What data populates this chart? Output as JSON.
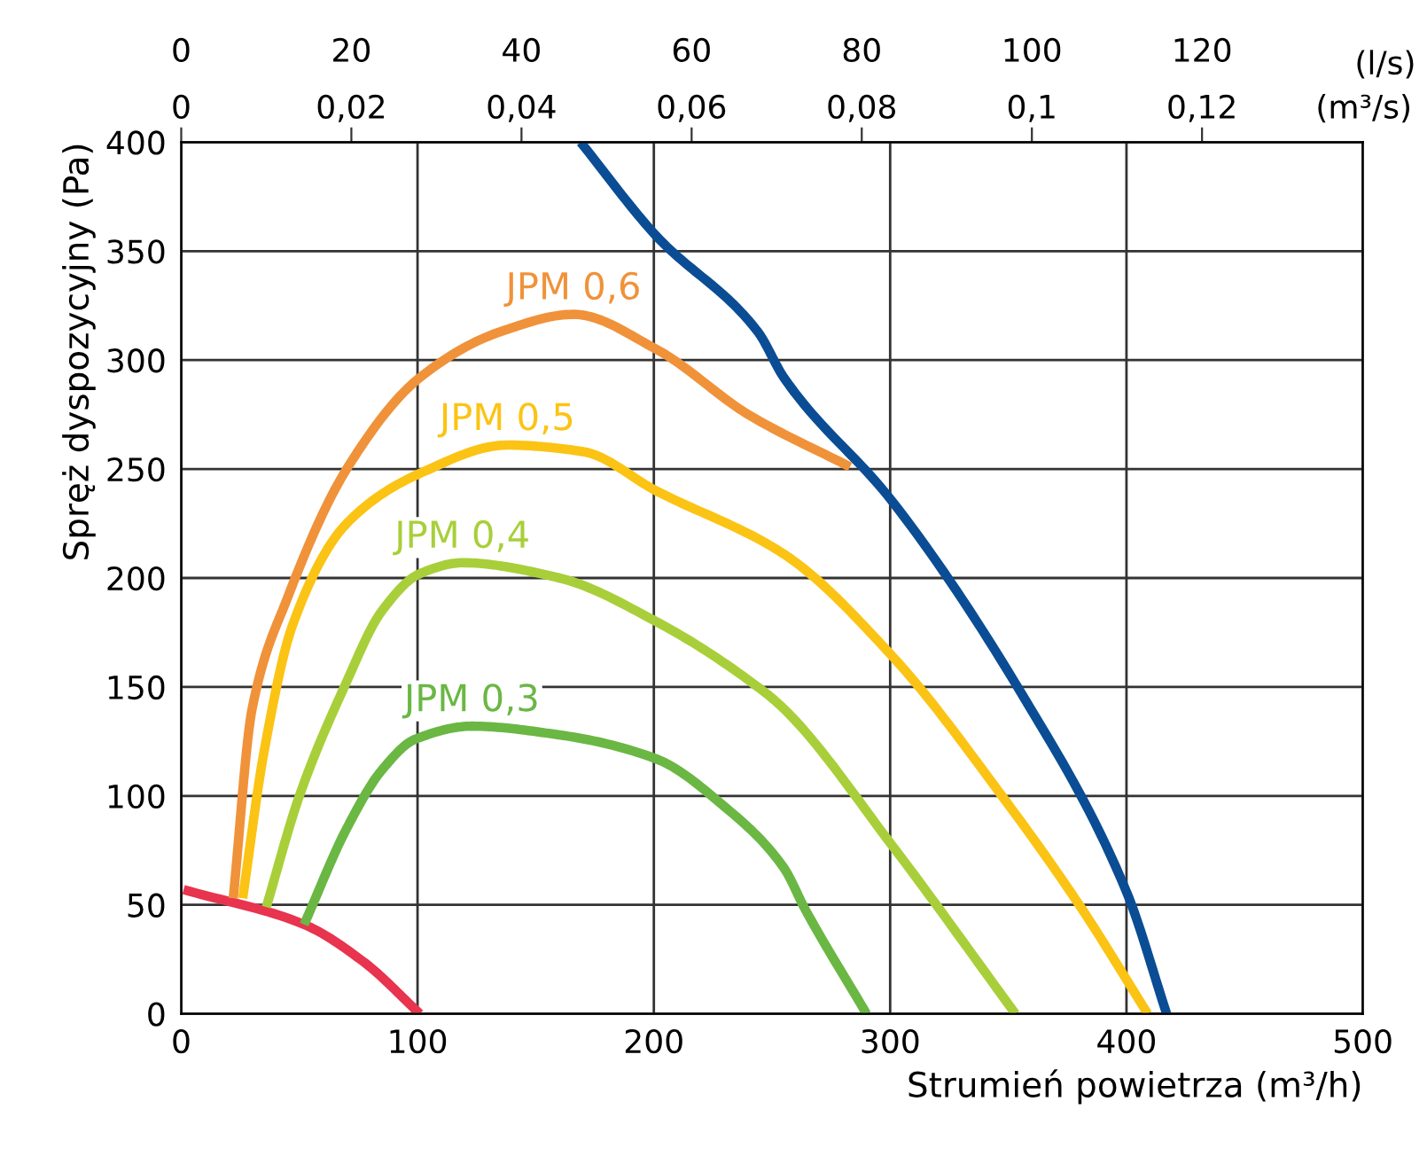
{
  "chart_data": {
    "type": "line",
    "xlabel": "Strumień powietrza (m³/h)",
    "ylabel": "Spręż dyspozycyjny (Pa)",
    "x2label": "(l/s)",
    "annotations": [
      "0",
      "0,02",
      "0,04",
      "0,06",
      "0,08",
      "0,1",
      "0,12",
      "(m³/s)"
    ],
    "xlim": [
      0,
      500
    ],
    "xticks": [
      0,
      100,
      200,
      300,
      400,
      500
    ],
    "ylim": [
      0,
      400
    ],
    "yticks": [
      0,
      50,
      100,
      150,
      200,
      250,
      300,
      350,
      400
    ],
    "x2lim": [
      0,
      138.9
    ],
    "x2ticks": [
      0,
      20,
      40,
      60,
      80,
      100,
      120
    ],
    "grid": true,
    "legend": false,
    "line_style": "solid",
    "marker": "none",
    "series": [
      {
        "color": "#e8344e",
        "x": [
          1,
          52,
          77,
          101
        ],
        "values": [
          57,
          41,
          24,
          0
        ]
      },
      {
        "color": "#0a4d94",
        "x": [
          169,
          201,
          244,
          255,
          301,
          355,
          400,
          417
        ],
        "values": [
          400,
          357,
          313,
          292,
          235,
          148,
          56,
          0
        ]
      },
      {
        "name": "JPM 0,6",
        "color": "#f0923a",
        "x": [
          22,
          30,
          45,
          70,
          101,
          135,
          166,
          201,
          240,
          283
        ],
        "values": [
          53,
          140,
          191,
          250,
          292,
          313,
          321,
          305,
          275,
          251
        ]
      },
      {
        "name": "JPM 0,5",
        "color": "#fbc314",
        "x": [
          26,
          35,
          47,
          70,
          101,
          138,
          170,
          201,
          255,
          301,
          348,
          380,
          409
        ],
        "values": [
          53,
          120,
          178,
          225,
          248,
          261,
          258,
          240,
          211,
          164,
          99,
          50,
          0
        ]
      },
      {
        "name": "JPM 0,4",
        "color": "#a8cf3a",
        "x": [
          36,
          50,
          69,
          85,
          101,
          119,
          160,
          201,
          244,
          255,
          301,
          353
        ],
        "values": [
          49,
          100,
          150,
          185,
          202,
          207,
          200,
          180,
          150,
          140,
          77,
          0
        ]
      },
      {
        "name": "JPM 0,3",
        "color": "#6ab744",
        "x": [
          52,
          70,
          85,
          99,
          123,
          160,
          201,
          230,
          255,
          264,
          290
        ],
        "values": [
          41,
          85,
          112,
          126,
          132,
          128,
          117,
          95,
          67,
          48,
          0
        ]
      }
    ]
  }
}
